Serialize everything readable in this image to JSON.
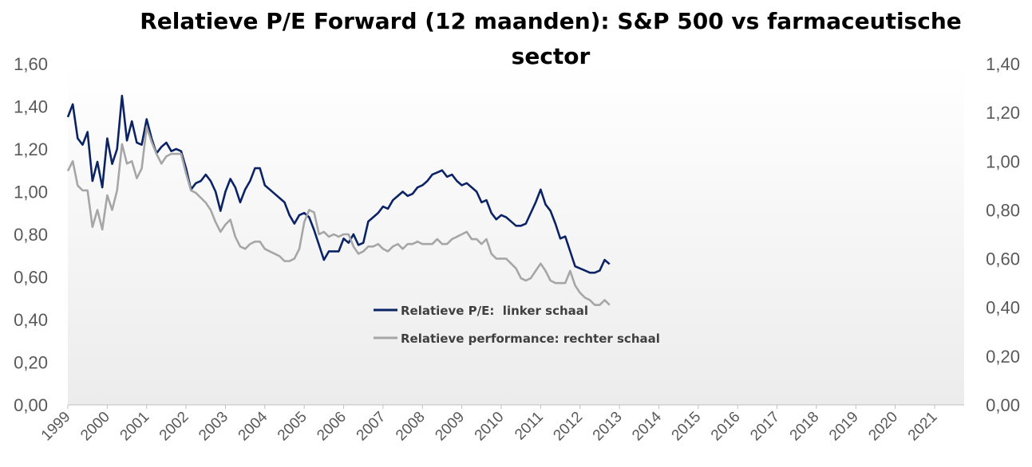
{
  "chart_data": {
    "type": "line",
    "title_line1": "Relatieve P/E Forward (12 maanden): S&P 500 vs farmaceutische",
    "title_line2": "sector",
    "x_start": 1999.0,
    "x_end": 2021.75,
    "step": 0.125,
    "x_tick_labels": [
      "1999",
      "2000",
      "2001",
      "2002",
      "2003",
      "2004",
      "2005",
      "2006",
      "2007",
      "2008",
      "2009",
      "2010",
      "2011",
      "2012",
      "2013",
      "2014",
      "2015",
      "2016",
      "2017",
      "2018",
      "2019",
      "2020",
      "2021"
    ],
    "y_left": {
      "lim": [
        0,
        1.6
      ],
      "tick_values": [
        0,
        0.2,
        0.4,
        0.6,
        0.8,
        1.0,
        1.2,
        1.4,
        1.6
      ],
      "tick_labels": [
        "0,00",
        "0,20",
        "0,40",
        "0,60",
        "0,80",
        "1,00",
        "1,20",
        "1,40",
        "1,60"
      ]
    },
    "y_right": {
      "lim": [
        0,
        1.4
      ],
      "tick_values": [
        0,
        0.2,
        0.4,
        0.6,
        0.8,
        1.0,
        1.2,
        1.4
      ],
      "tick_labels": [
        "0,00",
        "0,20",
        "0,40",
        "0,60",
        "0,80",
        "1,00",
        "1,20",
        "1,40"
      ]
    },
    "series": [
      {
        "name": "Relatieve P/E:  linker schaal",
        "axis": "left",
        "color": "#0b2364",
        "values": [
          1.35,
          1.41,
          1.25,
          1.22,
          1.28,
          1.05,
          1.14,
          1.02,
          1.25,
          1.13,
          1.2,
          1.45,
          1.24,
          1.33,
          1.23,
          1.22,
          1.34,
          1.25,
          1.18,
          1.21,
          1.23,
          1.19,
          1.2,
          1.19,
          1.11,
          1.01,
          1.04,
          1.05,
          1.08,
          1.05,
          1.0,
          0.91,
          1.0,
          1.06,
          1.02,
          0.95,
          1.01,
          1.05,
          1.11,
          1.11,
          1.03,
          1.01,
          0.99,
          0.97,
          0.95,
          0.89,
          0.85,
          0.89,
          0.9,
          0.88,
          0.82,
          0.75,
          0.68,
          0.72,
          0.72,
          0.72,
          0.78,
          0.76,
          0.8,
          0.75,
          0.76,
          0.86,
          0.88,
          0.9,
          0.93,
          0.92,
          0.96,
          0.98,
          1.0,
          0.98,
          0.99,
          1.02,
          1.03,
          1.05,
          1.08,
          1.09,
          1.1,
          1.07,
          1.08,
          1.05,
          1.03,
          1.04,
          1.02,
          1.0,
          0.95,
          0.96,
          0.9,
          0.87,
          0.89,
          0.88,
          0.86,
          0.84,
          0.84,
          0.85,
          0.9,
          0.95,
          1.01,
          0.94,
          0.91,
          0.85,
          0.78,
          0.79,
          0.72,
          0.65,
          0.64,
          0.63,
          0.62,
          0.62,
          0.63,
          0.68,
          0.66
        ]
      },
      {
        "name": "Relatieve performance: rechter schaal",
        "axis": "right",
        "color": "#a6a6a6",
        "values": [
          0.96,
          1.0,
          0.9,
          0.88,
          0.88,
          0.73,
          0.8,
          0.72,
          0.86,
          0.8,
          0.88,
          1.07,
          0.99,
          1.0,
          0.93,
          0.97,
          1.14,
          1.08,
          1.03,
          0.99,
          1.02,
          1.03,
          1.03,
          1.03,
          0.95,
          0.88,
          0.87,
          0.85,
          0.83,
          0.8,
          0.75,
          0.71,
          0.74,
          0.76,
          0.69,
          0.65,
          0.64,
          0.66,
          0.67,
          0.67,
          0.64,
          0.63,
          0.62,
          0.61,
          0.59,
          0.59,
          0.6,
          0.64,
          0.75,
          0.8,
          0.79,
          0.7,
          0.71,
          0.69,
          0.7,
          0.69,
          0.7,
          0.7,
          0.65,
          0.62,
          0.63,
          0.65,
          0.65,
          0.66,
          0.64,
          0.63,
          0.65,
          0.66,
          0.64,
          0.66,
          0.66,
          0.67,
          0.66,
          0.66,
          0.66,
          0.68,
          0.66,
          0.66,
          0.68,
          0.69,
          0.7,
          0.71,
          0.68,
          0.68,
          0.66,
          0.68,
          0.62,
          0.6,
          0.6,
          0.6,
          0.58,
          0.56,
          0.52,
          0.51,
          0.52,
          0.55,
          0.58,
          0.55,
          0.51,
          0.5,
          0.5,
          0.5,
          0.55,
          0.49,
          0.46,
          0.44,
          0.43,
          0.41,
          0.41,
          0.43,
          0.41
        ]
      }
    ]
  }
}
